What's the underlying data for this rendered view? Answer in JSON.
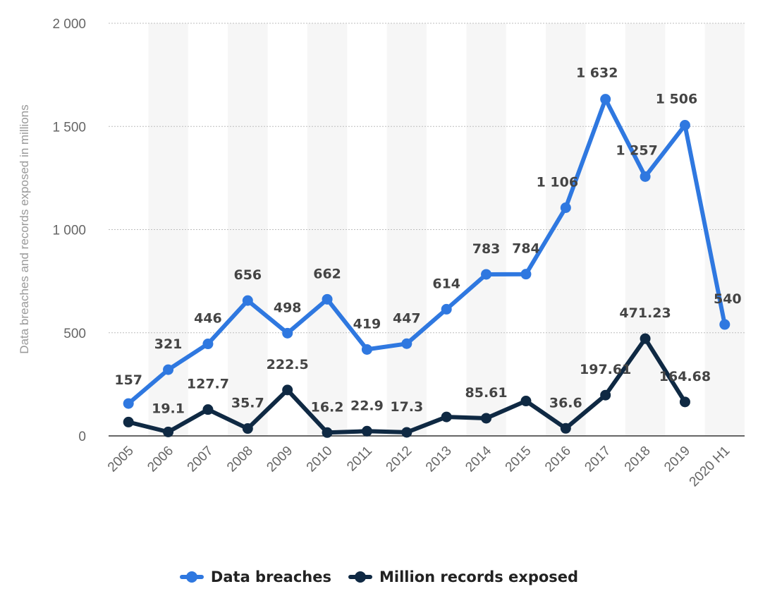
{
  "chart_data": {
    "type": "line",
    "title": "",
    "xlabel": "",
    "ylabel": "Data breaches and records exposed in millions",
    "ylim": [
      0,
      2000
    ],
    "yticks": [
      0,
      500,
      1000,
      1500,
      2000
    ],
    "ytick_labels": [
      "0",
      "500",
      "1 000",
      "1 500",
      "2 000"
    ],
    "grid": true,
    "legend_position": "bottom",
    "categories": [
      "2005",
      "2006",
      "2007",
      "2008",
      "2009",
      "2010",
      "2011",
      "2012",
      "2013",
      "2014",
      "2015",
      "2016",
      "2017",
      "2018",
      "2019",
      "2020 H1"
    ],
    "series": [
      {
        "name": "Data breaches",
        "color": "#2f78e0",
        "values": [
          157,
          321,
          446,
          656,
          498,
          662,
          419,
          447,
          614,
          783,
          784,
          1106,
          1632,
          1257,
          1506,
          540
        ],
        "labels": [
          "157",
          "321",
          "446",
          "656",
          "498",
          "662",
          "419",
          "447",
          "614",
          "783",
          "784",
          "1 106",
          "1 632",
          "1 257",
          "1 506",
          "540"
        ]
      },
      {
        "name": "Million records exposed",
        "color": "#0f2943",
        "values": [
          66.9,
          19.1,
          127.7,
          35.7,
          222.5,
          16.2,
          22.9,
          17.3,
          91.98,
          85.61,
          169.07,
          36.6,
          197.61,
          471.23,
          164.68,
          null
        ],
        "labels": [
          null,
          "19.1",
          "127.7",
          "35.7",
          "222.5",
          "16.2",
          "22.9",
          "17.3",
          null,
          "85.61",
          null,
          "36.6",
          "197.61",
          "471.23",
          "164.68",
          null
        ]
      }
    ]
  }
}
